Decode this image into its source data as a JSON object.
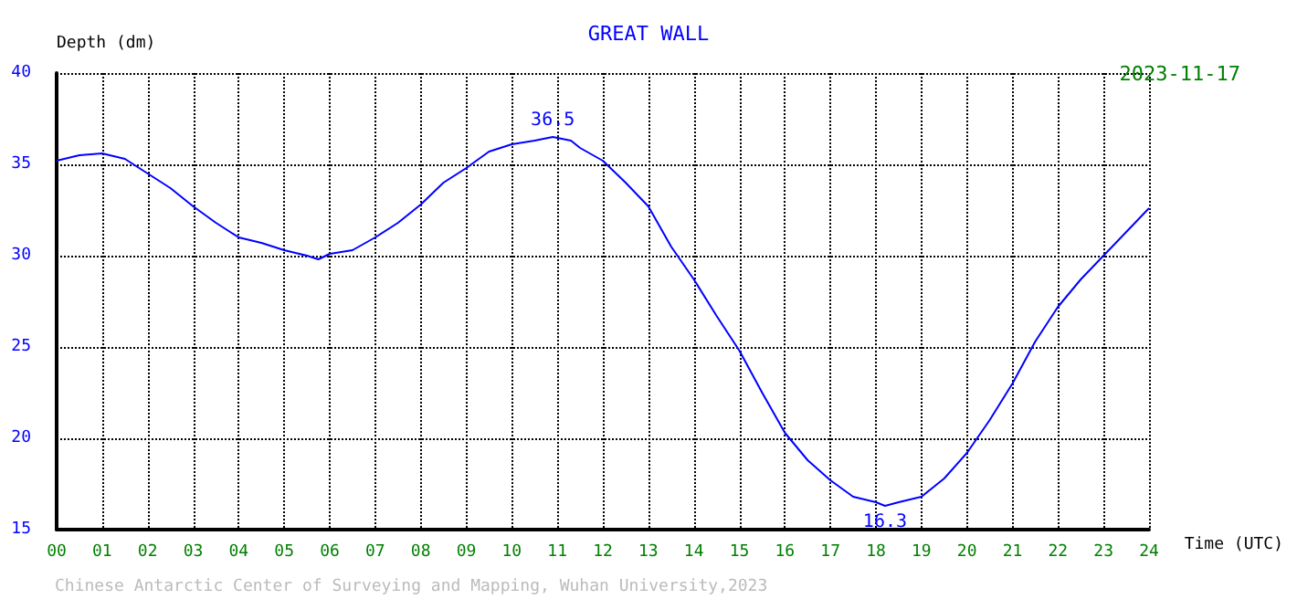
{
  "chart_data": {
    "type": "line",
    "title": "GREAT WALL",
    "subtitle": "2023-11-17",
    "xlabel": "Time (UTC)",
    "ylabel": "Depth (dm)",
    "x": [
      0,
      0.5,
      1,
      1.5,
      2,
      2.5,
      3,
      3.5,
      4,
      4.5,
      5,
      5.5,
      5.75,
      6,
      6.5,
      7,
      7.5,
      8,
      8.5,
      9,
      9.5,
      10,
      10.5,
      10.9,
      11.3,
      11.5,
      12,
      12.5,
      13,
      13.5,
      14,
      14.5,
      15,
      15.5,
      16,
      16.5,
      17,
      17.5,
      18,
      18.2,
      18.5,
      19,
      19.5,
      20,
      20.5,
      21,
      21.5,
      22,
      22.5,
      23,
      23.5,
      24
    ],
    "series": [
      {
        "color": "#0000ff",
        "values": [
          35.2,
          35.5,
          35.6,
          35.3,
          34.5,
          33.7,
          32.7,
          31.8,
          31.0,
          30.7,
          30.3,
          30.0,
          29.8,
          30.1,
          30.3,
          31.0,
          31.8,
          32.8,
          34.0,
          34.8,
          35.7,
          36.1,
          36.3,
          36.5,
          36.3,
          35.9,
          35.2,
          34.0,
          32.7,
          30.5,
          28.7,
          26.7,
          24.8,
          22.5,
          20.3,
          18.8,
          17.7,
          16.8,
          16.5,
          16.3,
          16.5,
          16.8,
          17.8,
          19.2,
          21.0,
          23.0,
          25.3,
          27.2,
          28.7,
          30.0,
          31.3,
          32.6
        ]
      }
    ],
    "xlim": [
      0,
      24
    ],
    "xticks": [
      {
        "value": 0,
        "label": "00"
      },
      {
        "value": 1,
        "label": "01"
      },
      {
        "value": 2,
        "label": "02"
      },
      {
        "value": 3,
        "label": "03"
      },
      {
        "value": 4,
        "label": "04"
      },
      {
        "value": 5,
        "label": "05"
      },
      {
        "value": 6,
        "label": "06"
      },
      {
        "value": 7,
        "label": "07"
      },
      {
        "value": 8,
        "label": "08"
      },
      {
        "value": 9,
        "label": "09"
      },
      {
        "value": 10,
        "label": "10"
      },
      {
        "value": 11,
        "label": "11"
      },
      {
        "value": 12,
        "label": "12"
      },
      {
        "value": 13,
        "label": "13"
      },
      {
        "value": 14,
        "label": "14"
      },
      {
        "value": 15,
        "label": "15"
      },
      {
        "value": 16,
        "label": "16"
      },
      {
        "value": 17,
        "label": "17"
      },
      {
        "value": 18,
        "label": "18"
      },
      {
        "value": 19,
        "label": "19"
      },
      {
        "value": 20,
        "label": "20"
      },
      {
        "value": 21,
        "label": "21"
      },
      {
        "value": 22,
        "label": "22"
      },
      {
        "value": 23,
        "label": "23"
      },
      {
        "value": 24,
        "label": "24"
      }
    ],
    "ylim": [
      15,
      40
    ],
    "yticks": [
      15,
      20,
      25,
      30,
      35,
      40
    ],
    "grid": true,
    "marker": "none",
    "line_style": "solid",
    "annotations": [
      {
        "text": "36.5",
        "x": 10.9,
        "y": 36.5
      },
      {
        "text": "16.3",
        "x": 18.2,
        "y": 16.3
      },
      "Chinese Antarctic Center of Surveying and Mapping, Wuhan University,2023"
    ]
  }
}
